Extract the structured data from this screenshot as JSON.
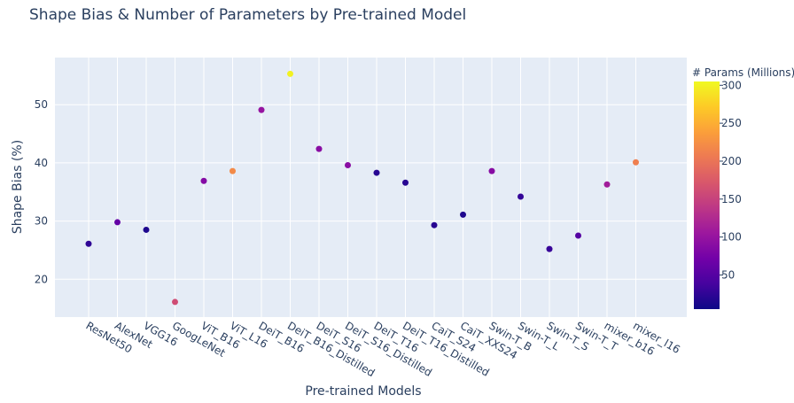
{
  "chart_data": {
    "type": "scatter",
    "title": "Shape Bias & Number of Parameters by Pre-trained Model",
    "xlabel": "Pre-trained Models",
    "ylabel": "Shape Bias (%)",
    "categories": [
      "ResNet50",
      "AlexNet",
      "VGG16",
      "GoogLeNet",
      "ViT_B16",
      "ViT_L16",
      "DeiT_B16",
      "DeiT_B16_Distilled",
      "DeiT_S16",
      "DeiT_S16_Distilled",
      "DeiT_T16",
      "DeiT_T16_Distilled",
      "CaiT_S24",
      "CaiT_XXS24",
      "Swin-T_B",
      "Swin-T_L",
      "Swin-T_S",
      "Swin-T_T",
      "mixer_b16",
      "mixer_l16"
    ],
    "values": [
      26.1,
      29.8,
      28.5,
      16.1,
      36.9,
      38.6,
      49.1,
      55.3,
      42.4,
      39.6,
      38.3,
      36.6,
      29.3,
      31.1,
      38.6,
      34.2,
      25.2,
      27.5,
      36.3,
      40.1
    ],
    "params": [
      25,
      61,
      15,
      160,
      86,
      220,
      100,
      300,
      90,
      90,
      20,
      20,
      20,
      15,
      88,
      28,
      30,
      50,
      110,
      210
    ],
    "ylim": [
      13.5,
      58.1
    ],
    "yticks": [
      20,
      30,
      40,
      50
    ],
    "grid": true,
    "colorbar": {
      "title": "# Params (Millions)",
      "range": [
        5,
        305
      ],
      "ticks": [
        50,
        100,
        150,
        200,
        250,
        300
      ],
      "colorscale": [
        "#0d0887",
        "#46039f",
        "#7201a8",
        "#9c179e",
        "#bd3786",
        "#d8576b",
        "#ed7953",
        "#fb9f3a",
        "#fdca26",
        "#f0f921"
      ]
    }
  }
}
